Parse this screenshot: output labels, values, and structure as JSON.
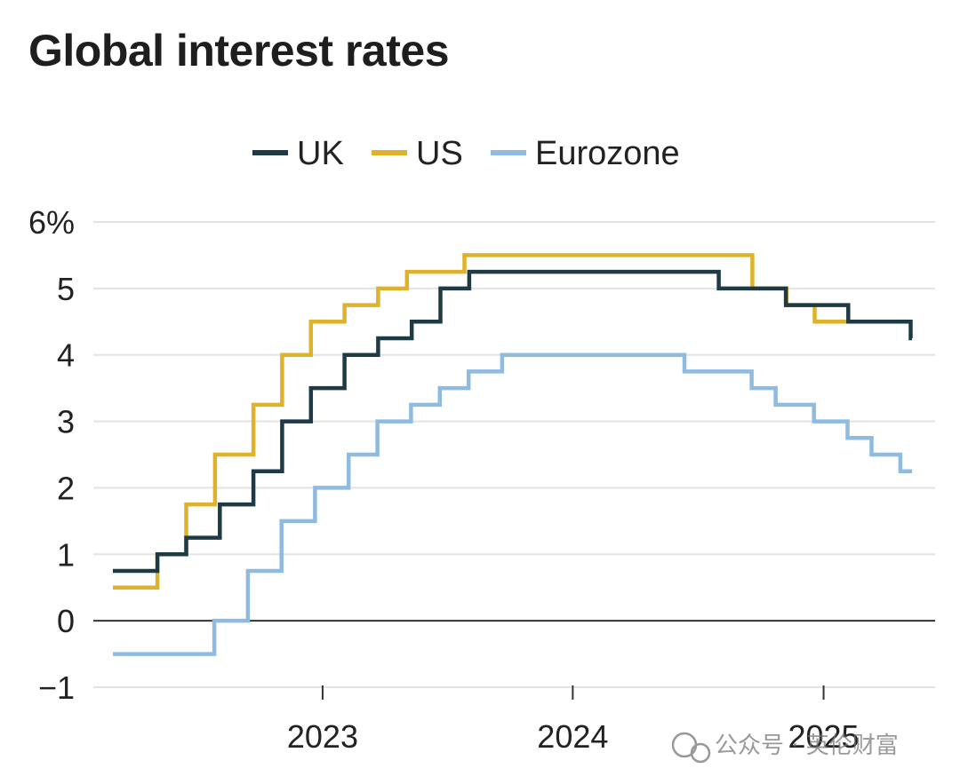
{
  "chart_data": {
    "type": "line",
    "step": true,
    "title": "Global interest rates",
    "xlabel": "",
    "ylabel": "",
    "ylim": [
      -1,
      6
    ],
    "xlim": [
      "2022-03-01",
      "2025-05-10"
    ],
    "yticks": [
      6,
      5,
      4,
      3,
      2,
      1,
      0,
      -1
    ],
    "ytick_labels": [
      "6%",
      "5",
      "4",
      "3",
      "2",
      "1",
      "0",
      "−1"
    ],
    "xticks": [
      {
        "value": "2023-01-01",
        "label": "2023"
      },
      {
        "value": "2024-01-01",
        "label": "2024"
      },
      {
        "value": "2025-01-01",
        "label": "2025"
      }
    ],
    "grid": true,
    "legend_position": "top",
    "series": [
      {
        "name": "UK",
        "color": "#1e3a44",
        "points": [
          [
            "2022-03-01",
            0.75
          ],
          [
            "2022-05-05",
            1.0
          ],
          [
            "2022-06-16",
            1.25
          ],
          [
            "2022-08-04",
            1.75
          ],
          [
            "2022-09-22",
            2.25
          ],
          [
            "2022-11-03",
            3.0
          ],
          [
            "2022-12-15",
            3.5
          ],
          [
            "2023-02-02",
            4.0
          ],
          [
            "2023-03-23",
            4.25
          ],
          [
            "2023-05-11",
            4.5
          ],
          [
            "2023-06-22",
            5.0
          ],
          [
            "2023-08-03",
            5.25
          ],
          [
            "2024-08-01",
            5.0
          ],
          [
            "2024-11-07",
            4.75
          ],
          [
            "2025-02-06",
            4.5
          ],
          [
            "2025-05-08",
            4.25
          ],
          [
            "2025-05-10",
            4.25
          ]
        ]
      },
      {
        "name": "US",
        "color": "#e0b22a",
        "points": [
          [
            "2022-03-01",
            0.5
          ],
          [
            "2022-05-05",
            1.0
          ],
          [
            "2022-06-16",
            1.75
          ],
          [
            "2022-07-28",
            2.5
          ],
          [
            "2022-09-22",
            3.25
          ],
          [
            "2022-11-03",
            4.0
          ],
          [
            "2022-12-15",
            4.5
          ],
          [
            "2023-02-02",
            4.75
          ],
          [
            "2023-03-23",
            5.0
          ],
          [
            "2023-05-04",
            5.25
          ],
          [
            "2023-07-27",
            5.5
          ],
          [
            "2024-09-19",
            5.0
          ],
          [
            "2024-11-08",
            4.75
          ],
          [
            "2024-12-19",
            4.5
          ],
          [
            "2025-05-10",
            4.5
          ]
        ]
      },
      {
        "name": "Eurozone",
        "color": "#8fbbe0",
        "points": [
          [
            "2022-03-01",
            -0.5
          ],
          [
            "2022-07-27",
            0.0
          ],
          [
            "2022-09-14",
            0.75
          ],
          [
            "2022-11-02",
            1.5
          ],
          [
            "2022-12-21",
            2.0
          ],
          [
            "2023-02-08",
            2.5
          ],
          [
            "2023-03-22",
            3.0
          ],
          [
            "2023-05-10",
            3.25
          ],
          [
            "2023-06-21",
            3.5
          ],
          [
            "2023-08-02",
            3.75
          ],
          [
            "2023-09-20",
            4.0
          ],
          [
            "2024-06-12",
            3.75
          ],
          [
            "2024-09-18",
            3.5
          ],
          [
            "2024-10-23",
            3.25
          ],
          [
            "2024-12-18",
            3.0
          ],
          [
            "2025-02-05",
            2.75
          ],
          [
            "2025-03-12",
            2.5
          ],
          [
            "2025-04-23",
            2.25
          ],
          [
            "2025-05-10",
            2.25
          ]
        ]
      }
    ]
  },
  "watermark": {
    "text": "公众号 · 英伦财富"
  }
}
